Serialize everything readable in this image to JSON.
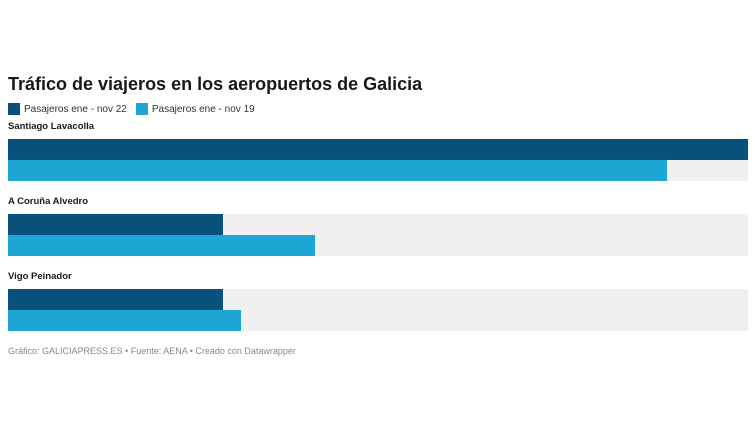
{
  "colors": {
    "series_1": "#0a527c",
    "series_2": "#1ea6d4",
    "track": "#f0f0f0"
  },
  "chart_data": {
    "type": "bar",
    "orientation": "horizontal",
    "title": "Tráfico de viajeros en los aeropuertos de Galicia",
    "legend_position": "top-left",
    "categories": [
      "Santiago Lavacolla",
      "A Coruña Alvedro",
      "Vigo Peinador"
    ],
    "series": [
      {
        "name": "Pasajeros ene - nov 22",
        "values": [
          100,
          29,
          29
        ]
      },
      {
        "name": "Pasajeros ene - nov 19",
        "values": [
          89,
          41.5,
          31.5
        ]
      }
    ],
    "xlim": [
      0,
      100
    ],
    "grid": false,
    "footer": "Gráfico: GALICIAPRESS.ES • Fuente: AENA • Creado con Datawrapper"
  }
}
